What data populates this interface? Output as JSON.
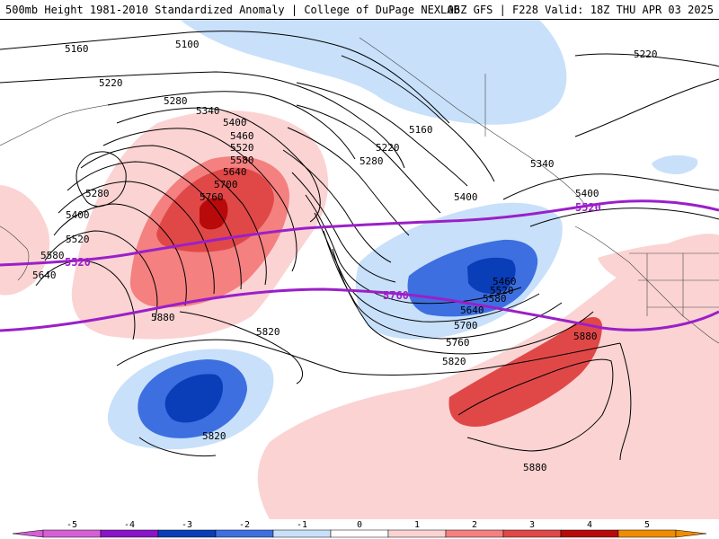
{
  "header": {
    "title_left": "500mb Height 1981-2010 Standardized Anomaly | College of DuPage NEXLAB",
    "title_right": "06Z GFS | F228 Valid: 18Z THU APR 03 2025"
  },
  "colors": {
    "anom_neg5": "#d65fd6",
    "anom_neg4": "#8a14c8",
    "anom_neg3": "#0a3db8",
    "anom_neg2": "#3d6fe0",
    "anom_neg1": "#c8e0fa",
    "anom_pos1": "#fbd3d3",
    "anom_pos2": "#f48080",
    "anom_pos3": "#e04848",
    "anom_pos4": "#b80a0a",
    "anom_pos5": "#f08c00",
    "highlight_contour": "#9b1fc8",
    "height_contour": "#000000"
  },
  "colorbar": {
    "labels": [
      "-5",
      "-4",
      "-3",
      "-2",
      "-1",
      "0",
      "1",
      "2",
      "3",
      "4",
      "5"
    ]
  },
  "contour_labels": [
    "5160",
    "5100",
    "5220",
    "5280",
    "5340",
    "5400",
    "5460",
    "5520",
    "5580",
    "5640",
    "5700",
    "5760",
    "5280",
    "5400",
    "5520",
    "5580",
    "5640",
    "5880",
    "5820",
    "5820",
    "5160",
    "5220",
    "5280",
    "5340",
    "5400",
    "5460",
    "5520",
    "5580",
    "5640",
    "5700",
    "5760",
    "5820",
    "5880",
    "5880",
    "5220",
    "5400"
  ],
  "highlight_labels": [
    "5520",
    "5520",
    "5760"
  ]
}
